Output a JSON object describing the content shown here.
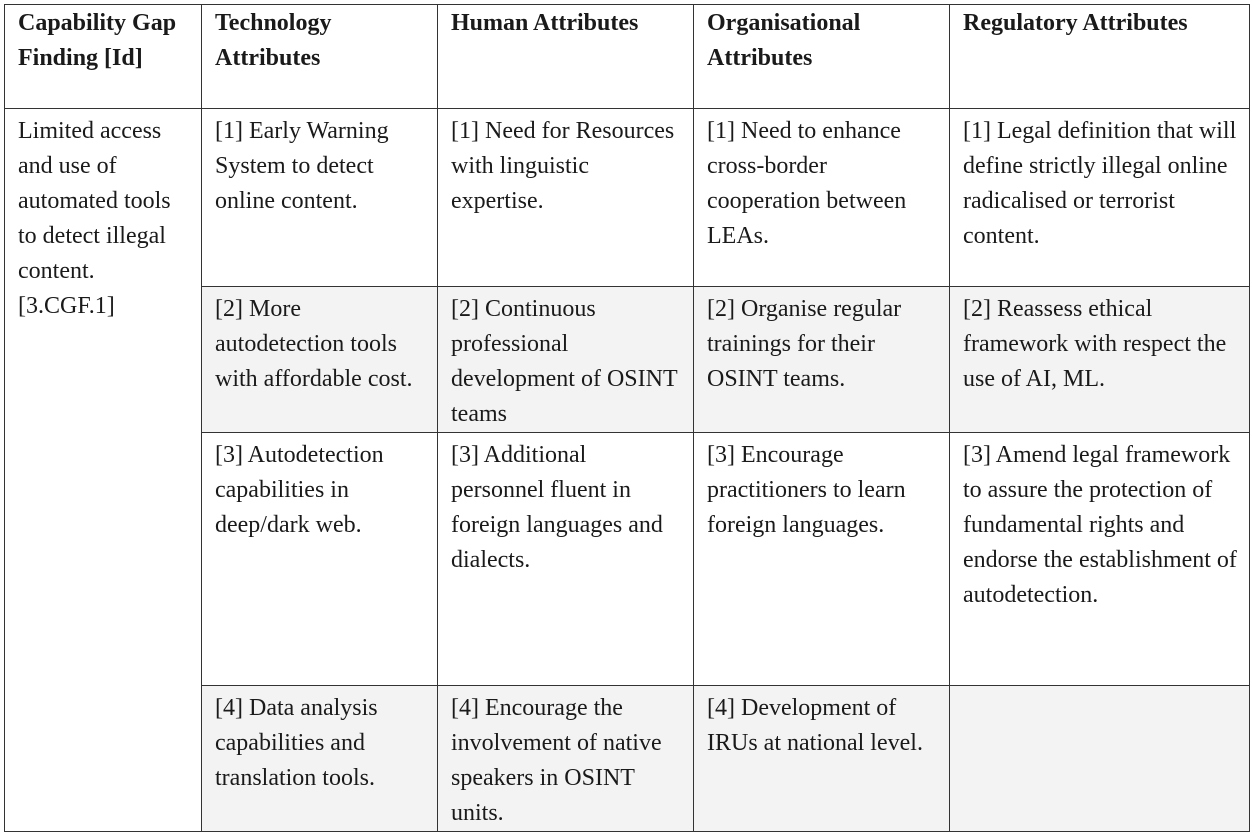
{
  "table": {
    "headers": [
      "Capability Gap Finding [Id]",
      "Technology Attributes",
      "Human Attributes",
      "Organisational Attributes",
      "Regulatory Attributes"
    ],
    "gap_finding": "Limited access and use of automated tools to detect illegal content. [3.CGF.1]",
    "rows": [
      {
        "technology": "[1] Early Warning System to detect online content.",
        "human": "[1] Need for Resources with linguistic expertise.",
        "organisational": "[1] Need to enhance cross-border cooperation between LEAs.",
        "regulatory": "[1] Legal definition that will define strictly illegal online radicalised or terrorist content."
      },
      {
        "technology": "[2] More autodetection tools with affordable cost.",
        "human": "[2] Continuous professional development of OSINT teams",
        "organisational": "[2] Organise regular trainings for their OSINT teams.",
        "regulatory": "[2] Reassess ethical framework with respect the use of AI, ML."
      },
      {
        "technology": "[3] Autodetection capabilities in deep/dark web.",
        "human": "[3] Additional personnel fluent in foreign languages and dialects.",
        "organisational": "[3] Encourage practitioners to learn foreign languages.",
        "regulatory": "[3] Amend legal framework to assure the protection of fundamental rights and endorse the establishment of autodetection."
      },
      {
        "technology": "[4] Data analysis capabilities and translation tools.",
        "human": "[4] Encourage the involvement of native speakers in OSINT units.",
        "organisational": "[4] Development of IRUs at national level.",
        "regulatory": ""
      }
    ]
  }
}
